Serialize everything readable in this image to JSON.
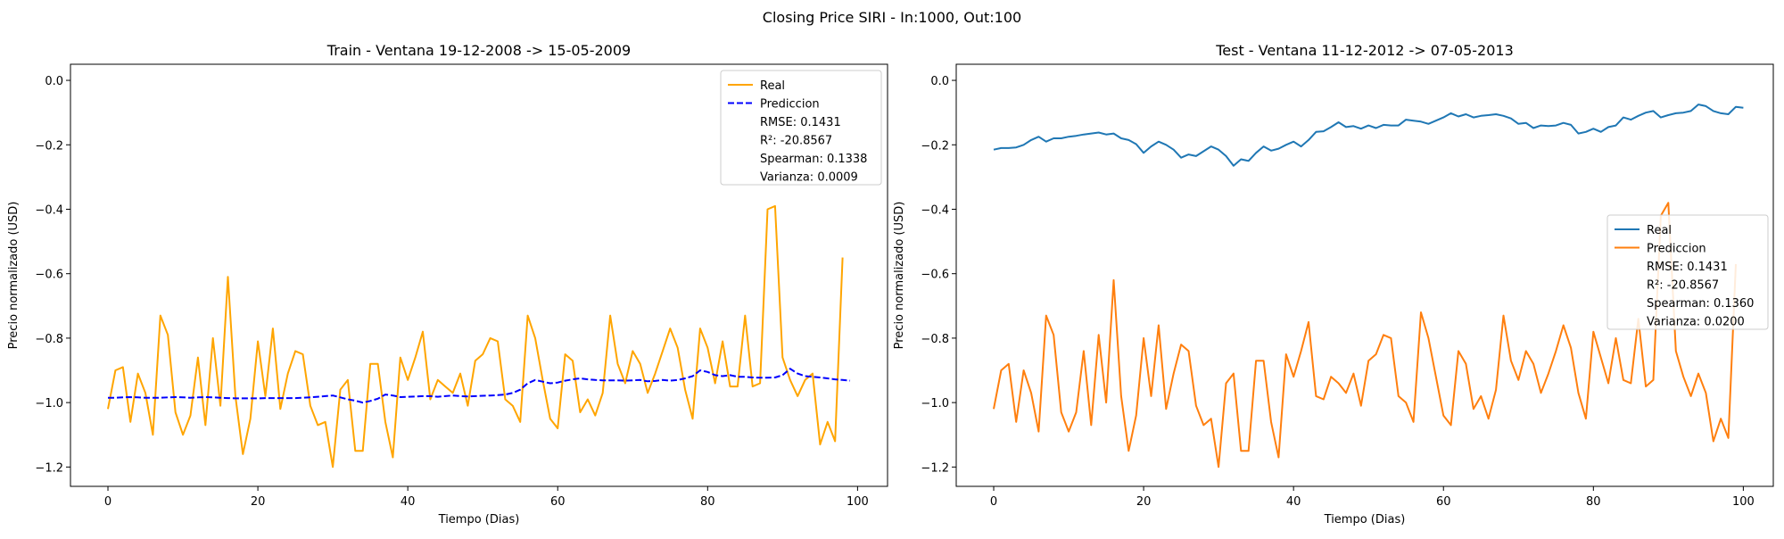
{
  "figure": {
    "suptitle": "Closing Price SIRI - In:1000, Out:100"
  },
  "chart_data": [
    {
      "type": "line",
      "title": "Train - Ventana 19-12-2008 -> 15-05-2009",
      "xlabel": "Tiempo (Dias)",
      "ylabel": "Precio normalizado (USD)",
      "xlim": [
        -5,
        104
      ],
      "ylim": [
        -1.26,
        0.05
      ],
      "xticks": [
        0,
        20,
        40,
        60,
        80,
        100
      ],
      "yticks": [
        0.0,
        -0.2,
        -0.4,
        -0.6,
        -0.8,
        -1.0,
        -1.2
      ],
      "xtick_labels": [
        "0",
        "20",
        "40",
        "60",
        "80",
        "100"
      ],
      "ytick_labels": [
        "0.0",
        "−0.2",
        "−0.4",
        "−0.6",
        "−0.8",
        "−1.0",
        "−1.2"
      ],
      "grid": false,
      "legend_position": "top-right",
      "legend_extra": [
        "RMSE: 0.1431",
        "R²: -20.8567",
        "Spearman: 0.1338",
        "Varianza: 0.0009"
      ],
      "series": [
        {
          "name": "Real",
          "color": "#FFA500",
          "style": "solid",
          "values": [
            -1.02,
            -0.9,
            -0.89,
            -1.06,
            -0.91,
            -0.97,
            -1.1,
            -0.73,
            -0.79,
            -1.03,
            -1.1,
            -1.04,
            -0.86,
            -1.07,
            -0.8,
            -1.01,
            -0.61,
            -0.98,
            -1.16,
            -1.05,
            -0.81,
            -0.98,
            -0.77,
            -1.02,
            -0.91,
            -0.84,
            -0.85,
            -1.01,
            -1.07,
            -1.06,
            -1.2,
            -0.96,
            -0.93,
            -1.15,
            -1.15,
            -0.88,
            -0.88,
            -1.06,
            -1.17,
            -0.86,
            -0.93,
            -0.86,
            -0.78,
            -0.99,
            -0.93,
            -0.95,
            -0.97,
            -0.91,
            -1.01,
            -0.87,
            -0.85,
            -0.8,
            -0.81,
            -0.99,
            -1.01,
            -1.06,
            -0.73,
            -0.8,
            -0.93,
            -1.05,
            -1.08,
            -0.85,
            -0.87,
            -1.03,
            -0.99,
            -1.04,
            -0.97,
            -0.73,
            -0.88,
            -0.94,
            -0.84,
            -0.88,
            -0.97,
            -0.91,
            -0.84,
            -0.77,
            -0.83,
            -0.96,
            -1.05,
            -0.77,
            -0.83,
            -0.94,
            -0.81,
            -0.95,
            -0.95,
            -0.73,
            -0.95,
            -0.94,
            -0.4,
            -0.39,
            -0.86,
            -0.93,
            -0.98,
            -0.93,
            -0.91,
            -1.13,
            -1.06,
            -1.12,
            -0.55
          ]
        },
        {
          "name": "Prediccion",
          "color": "#0000FF",
          "style": "dashed",
          "values": [
            -0.985,
            -0.985,
            -0.984,
            -0.983,
            -0.984,
            -0.985,
            -0.985,
            -0.985,
            -0.984,
            -0.983,
            -0.984,
            -0.985,
            -0.984,
            -0.983,
            -0.984,
            -0.985,
            -0.986,
            -0.987,
            -0.987,
            -0.987,
            -0.987,
            -0.986,
            -0.986,
            -0.986,
            -0.986,
            -0.986,
            -0.985,
            -0.984,
            -0.982,
            -0.98,
            -0.978,
            -0.984,
            -0.99,
            -0.994,
            -1.0,
            -0.995,
            -0.988,
            -0.975,
            -0.978,
            -0.983,
            -0.982,
            -0.981,
            -0.98,
            -0.98,
            -0.982,
            -0.98,
            -0.978,
            -0.98,
            -0.981,
            -0.98,
            -0.979,
            -0.978,
            -0.977,
            -0.975,
            -0.97,
            -0.96,
            -0.94,
            -0.93,
            -0.935,
            -0.94,
            -0.938,
            -0.932,
            -0.928,
            -0.925,
            -0.928,
            -0.93,
            -0.931,
            -0.931,
            -0.931,
            -0.932,
            -0.931,
            -0.93,
            -0.934,
            -0.933,
            -0.93,
            -0.932,
            -0.93,
            -0.925,
            -0.918,
            -0.9,
            -0.905,
            -0.915,
            -0.918,
            -0.915,
            -0.92,
            -0.92,
            -0.922,
            -0.923,
            -0.923,
            -0.922,
            -0.915,
            -0.895,
            -0.91,
            -0.918,
            -0.92,
            -0.922,
            -0.925,
            -0.928,
            -0.93,
            -0.932
          ]
        }
      ]
    },
    {
      "type": "line",
      "title": "Test - Ventana 11-12-2012 -> 07-05-2013",
      "xlabel": "Tiempo (Dias)",
      "ylabel": "Precio normalizado (USD)",
      "xlim": [
        -5,
        104
      ],
      "ylim": [
        -1.26,
        0.05
      ],
      "xticks": [
        0,
        20,
        40,
        60,
        80,
        100
      ],
      "yticks": [
        0.0,
        -0.2,
        -0.4,
        -0.6,
        -0.8,
        -1.0,
        -1.2
      ],
      "xtick_labels": [
        "0",
        "20",
        "40",
        "60",
        "80",
        "100"
      ],
      "ytick_labels": [
        "0.0",
        "−0.2",
        "−0.4",
        "−0.6",
        "−0.8",
        "−1.0",
        "−1.2"
      ],
      "grid": false,
      "legend_position": "center-right",
      "legend_extra": [
        "RMSE: 0.1431",
        "R²: -20.8567",
        "Spearman: 0.1360",
        "Varianza: 0.0200"
      ],
      "series": [
        {
          "name": "Real",
          "color": "#1F77B4",
          "style": "solid",
          "values": [
            -0.215,
            -0.21,
            -0.21,
            -0.208,
            -0.2,
            -0.185,
            -0.175,
            -0.19,
            -0.18,
            -0.18,
            -0.175,
            -0.172,
            -0.168,
            -0.165,
            -0.162,
            -0.168,
            -0.165,
            -0.18,
            -0.185,
            -0.198,
            -0.225,
            -0.205,
            -0.19,
            -0.2,
            -0.215,
            -0.24,
            -0.23,
            -0.235,
            -0.22,
            -0.205,
            -0.215,
            -0.235,
            -0.265,
            -0.245,
            -0.25,
            -0.225,
            -0.205,
            -0.218,
            -0.212,
            -0.2,
            -0.19,
            -0.205,
            -0.185,
            -0.16,
            -0.158,
            -0.145,
            -0.13,
            -0.145,
            -0.142,
            -0.15,
            -0.14,
            -0.148,
            -0.138,
            -0.14,
            -0.14,
            -0.122,
            -0.125,
            -0.128,
            -0.135,
            -0.125,
            -0.115,
            -0.102,
            -0.112,
            -0.105,
            -0.115,
            -0.11,
            -0.108,
            -0.105,
            -0.11,
            -0.118,
            -0.135,
            -0.132,
            -0.148,
            -0.14,
            -0.142,
            -0.14,
            -0.132,
            -0.138,
            -0.165,
            -0.16,
            -0.15,
            -0.16,
            -0.145,
            -0.14,
            -0.115,
            -0.122,
            -0.11,
            -0.1,
            -0.095,
            -0.115,
            -0.108,
            -0.102,
            -0.1,
            -0.095,
            -0.075,
            -0.08,
            -0.095,
            -0.102,
            -0.105,
            -0.082,
            -0.085
          ]
        },
        {
          "name": "Prediccion",
          "color": "#FF7F0E",
          "style": "solid",
          "values": [
            -1.02,
            -0.9,
            -0.88,
            -1.06,
            -0.9,
            -0.97,
            -1.09,
            -0.73,
            -0.79,
            -1.03,
            -1.09,
            -1.03,
            -0.84,
            -1.07,
            -0.79,
            -1.0,
            -0.62,
            -0.98,
            -1.15,
            -1.04,
            -0.8,
            -0.98,
            -0.76,
            -1.02,
            -0.91,
            -0.82,
            -0.84,
            -1.01,
            -1.07,
            -1.05,
            -1.2,
            -0.94,
            -0.91,
            -1.15,
            -1.15,
            -0.87,
            -0.87,
            -1.06,
            -1.17,
            -0.85,
            -0.92,
            -0.84,
            -0.75,
            -0.98,
            -0.99,
            -0.92,
            -0.94,
            -0.97,
            -0.91,
            -1.01,
            -0.87,
            -0.85,
            -0.79,
            -0.8,
            -0.98,
            -1.0,
            -1.06,
            -0.72,
            -0.8,
            -0.92,
            -1.04,
            -1.07,
            -0.84,
            -0.88,
            -1.02,
            -0.98,
            -1.05,
            -0.96,
            -0.73,
            -0.87,
            -0.93,
            -0.84,
            -0.88,
            -0.97,
            -0.91,
            -0.84,
            -0.76,
            -0.83,
            -0.97,
            -1.05,
            -0.78,
            -0.86,
            -0.94,
            -0.8,
            -0.93,
            -0.94,
            -0.74,
            -0.95,
            -0.93,
            -0.42,
            -0.38,
            -0.84,
            -0.92,
            -0.98,
            -0.91,
            -0.97,
            -1.12,
            -1.05,
            -1.11,
            -0.57
          ]
        }
      ]
    }
  ]
}
